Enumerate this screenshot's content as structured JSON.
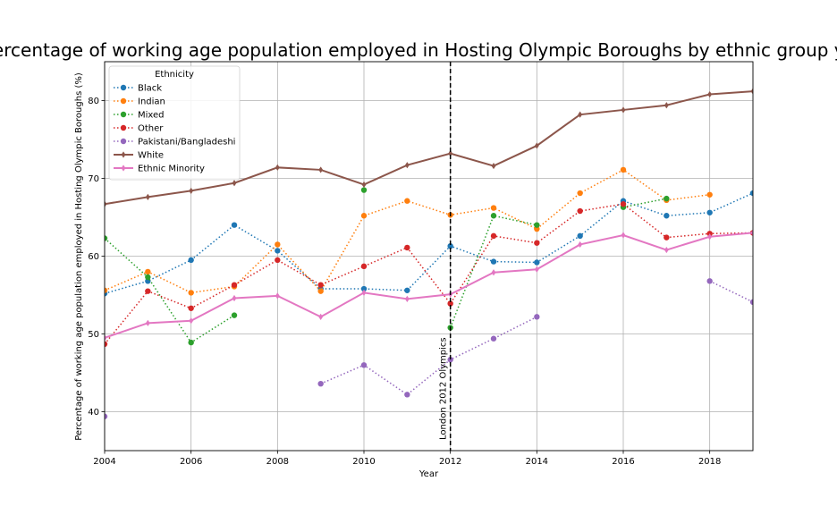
{
  "chart_data": {
    "type": "line",
    "title": "Percentage of working age population employed in Hosting Olympic Boroughs by ethnic group year",
    "xlabel": "Year",
    "ylabel": "Percentage of working age population employed in Hosting Olympic Boroughs (%)",
    "xlim": [
      2004,
      2019
    ],
    "ylim": [
      35,
      85
    ],
    "x_ticks": [
      "2004",
      "2006",
      "2008",
      "2010",
      "2012",
      "2014",
      "2016",
      "2018"
    ],
    "y_ticks": [
      "40",
      "50",
      "60",
      "70",
      "80"
    ],
    "grid": true,
    "legend": {
      "title": "Ethnicity",
      "placement": "upper-left"
    },
    "annotation": {
      "x": 2012,
      "text": "London 2012 Olympics"
    },
    "x": [
      2004,
      2005,
      2006,
      2007,
      2008,
      2009,
      2010,
      2011,
      2012,
      2013,
      2014,
      2015,
      2016,
      2017,
      2018,
      2019
    ],
    "series": [
      {
        "name": "Black",
        "color": "#1f77b4",
        "style": "dotted",
        "marker": "circle",
        "values": [
          55.2,
          56.8,
          59.5,
          64.0,
          60.7,
          55.8,
          55.8,
          55.6,
          61.3,
          59.3,
          59.2,
          62.6,
          67.1,
          65.2,
          65.6,
          68.1
        ]
      },
      {
        "name": "Indian",
        "color": "#ff7f0e",
        "style": "dotted",
        "marker": "circle",
        "values": [
          55.6,
          58.0,
          55.3,
          56.1,
          61.5,
          55.5,
          65.2,
          67.1,
          65.3,
          66.2,
          63.5,
          68.1,
          71.1,
          67.2,
          67.9,
          null
        ]
      },
      {
        "name": "Mixed",
        "color": "#2ca02c",
        "style": "dotted",
        "marker": "circle",
        "values": [
          62.3,
          57.3,
          48.9,
          52.4,
          null,
          null,
          68.5,
          null,
          50.8,
          65.2,
          64.0,
          null,
          66.3,
          67.4,
          null,
          null
        ]
      },
      {
        "name": "Other",
        "color": "#d62728",
        "style": "dotted",
        "marker": "circle",
        "values": [
          48.7,
          55.5,
          53.3,
          56.3,
          59.5,
          56.3,
          58.7,
          61.1,
          53.9,
          62.6,
          61.7,
          65.8,
          66.7,
          62.4,
          62.9,
          63.0
        ]
      },
      {
        "name": "Pakistani/Bangladeshi",
        "color": "#9467bd",
        "style": "dotted",
        "marker": "circle",
        "values": [
          39.4,
          null,
          null,
          null,
          null,
          43.6,
          46.0,
          42.2,
          46.7,
          49.4,
          52.2,
          null,
          null,
          null,
          56.8,
          54.1
        ]
      },
      {
        "name": "White",
        "color": "#8c564b",
        "style": "solid",
        "marker": "thin_diamond",
        "values": [
          66.7,
          67.6,
          68.4,
          69.4,
          71.4,
          71.1,
          69.2,
          71.7,
          73.2,
          71.6,
          74.2,
          78.2,
          78.8,
          79.4,
          80.8,
          81.2
        ]
      },
      {
        "name": "Ethnic Minority",
        "color": "#e377c2",
        "style": "solid",
        "marker": "thin_diamond",
        "values": [
          49.5,
          51.4,
          51.7,
          54.6,
          54.9,
          52.2,
          55.3,
          54.5,
          55.1,
          57.9,
          58.3,
          61.5,
          62.7,
          60.8,
          62.5,
          63.0
        ]
      }
    ]
  }
}
